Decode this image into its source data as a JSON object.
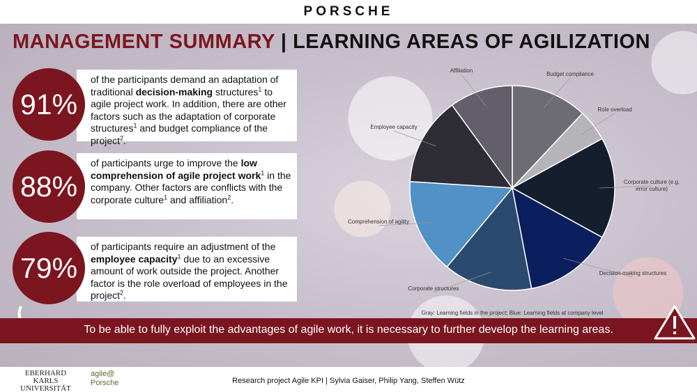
{
  "header": {
    "logo": "PORSCHE",
    "title_red": "MANAGEMENT SUMMARY",
    "title_rest": "| LEARNING AREAS OF AGILIZATION"
  },
  "findings": [
    {
      "figure": "91%",
      "segments": [
        {
          "text": "of the participants demand an adaptation of traditional ",
          "format": "normal"
        },
        {
          "text": "decision-making",
          "format": "bold"
        },
        {
          "text": " structures",
          "format": "normal"
        },
        {
          "text": "1",
          "format": "sup"
        },
        {
          "text": " to agile project work. In addition, there are other factors such as the adaptation of corporate structures",
          "format": "normal"
        },
        {
          "text": "1",
          "format": "sup"
        },
        {
          "text": " and budget compliance of the project",
          "format": "normal"
        },
        {
          "text": "2",
          "format": "sup"
        },
        {
          "text": ".",
          "format": "normal"
        }
      ]
    },
    {
      "figure": "88%",
      "segments": [
        {
          "text": "of participants urge to improve the ",
          "format": "normal"
        },
        {
          "text": "low comprehension of agile project work",
          "format": "bold"
        },
        {
          "text": "1",
          "format": "sup"
        },
        {
          "text": " in the company. Other factors are conflicts with the corporate culture",
          "format": "normal"
        },
        {
          "text": "1",
          "format": "sup"
        },
        {
          "text": " and affiliation",
          "format": "normal"
        },
        {
          "text": "2",
          "format": "sup"
        },
        {
          "text": ".",
          "format": "normal"
        }
      ]
    },
    {
      "figure": "79%",
      "segments": [
        {
          "text": "of participants require an adjustment of the ",
          "format": "normal"
        },
        {
          "text": "employee capacity",
          "format": "bold"
        },
        {
          "text": "1",
          "format": "sup"
        },
        {
          "text": " due to an excessive amount of work outside the project. Another factor is the role overload of employees in the project",
          "format": "normal"
        },
        {
          "text": "2",
          "format": "sup"
        },
        {
          "text": ".",
          "format": "normal"
        }
      ]
    }
  ],
  "chart_data": {
    "type": "pie",
    "categories": [
      "Budget compliance",
      "Role overload",
      "Corporate culture (e.g. error culture)",
      "Decision-making structures",
      "Corporate structures",
      "Comprehension of agility",
      "Employee capacity",
      "Affiliation"
    ],
    "values": [
      12,
      5,
      16,
      14,
      14,
      15,
      14,
      10
    ],
    "colors": [
      "#6d6c73",
      "#b5b5b9",
      "#141e2e",
      "#0b1f5e",
      "#2b4a6f",
      "#5291c6",
      "#2e2d36",
      "#625f6b"
    ],
    "caption": "Gray: Learning fields in the project; Blue: Learning fields at company level"
  },
  "banner": "To be able to fully exploit the advantages of agile work, it is necessary  to further develop the learning areas.",
  "footer": {
    "university": "EBERHARD KARLS UNIVERSITÄT TÜBINGEN",
    "partner": "agile@ Porsche",
    "credits": "Research project Agile KPI | Sylvia Gaiser, Philip Yang, Steffen Wütz"
  }
}
